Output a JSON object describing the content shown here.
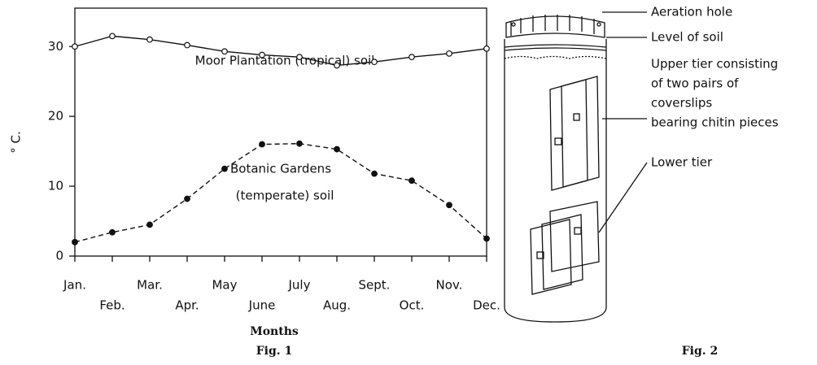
{
  "chart_data": {
    "type": "line",
    "y_label": "° C.",
    "x_label": "Months",
    "caption": "Fig. 1",
    "annotations": [
      "Moor Plantation (tropical) soil",
      "Botanic Gardens",
      "(temperate) soil"
    ],
    "categories": [
      "Jan.",
      "Feb.",
      "Mar.",
      "Apr.",
      "May",
      "June",
      "July",
      "Aug.",
      "Sept.",
      "Oct.",
      "Nov.",
      "Dec."
    ],
    "series": [
      {
        "color": "#111111",
        "style": "solid",
        "marker": "open",
        "values": [
          30,
          31.5,
          31,
          30.2,
          29.3,
          28.8,
          28.5,
          27.3,
          27.8,
          28.5,
          29,
          29.7
        ]
      },
      {
        "color": "#111111",
        "style": "dashed",
        "marker": "filled",
        "values": [
          2,
          3.4,
          4.5,
          8.2,
          12.5,
          16,
          16.1,
          15.3,
          11.8,
          10.8,
          7.3,
          2.5
        ]
      }
    ],
    "ylim": [
      0,
      35.5
    ],
    "yticks": [
      0,
      10,
      20,
      30
    ],
    "grid": false
  },
  "diagram": {
    "caption": "Fig. 2",
    "labels": {
      "aeration": "Aeration hole",
      "level": "Level of soil",
      "upper_tier": [
        "Upper tier consisting",
        "of two pairs of",
        "coverslips",
        "bearing chitin pieces"
      ],
      "lower_tier": "Lower tier"
    }
  }
}
